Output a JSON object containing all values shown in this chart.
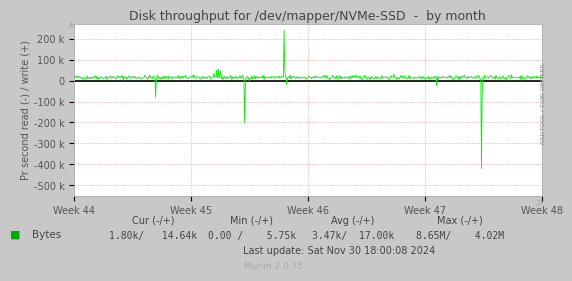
{
  "title": "Disk throughput for /dev/mapper/NVMe-SSD  -  by month",
  "ylabel": "Pr second read (-) / write (+)",
  "xlabel_ticks": [
    "Week 44",
    "Week 45",
    "Week 46",
    "Week 47",
    "Week 48"
  ],
  "ylim": [
    -550000,
    270000
  ],
  "yticks": [
    -500000,
    -400000,
    -300000,
    -200000,
    -100000,
    0,
    100000,
    200000
  ],
  "ytick_labels": [
    "-500 k",
    "-400 k",
    "-300 k",
    "-200 k",
    "-100 k",
    "0",
    "100 k",
    "200 k"
  ],
  "bg_color": "#c8c8c8",
  "plot_bg_color": "#ffffff",
  "grid_color": "#f08080",
  "line_color": "#00ee00",
  "zero_line_color": "#000000",
  "sidebar_text": "RRDTOOL / TOBI OETIKER",
  "legend_label": "Bytes",
  "legend_color": "#00aa00",
  "footer_update": "Last update: Sat Nov 30 18:00:08 2024",
  "munin_label": "Munin 2.0.75",
  "n_points": 700,
  "base_signal_mean": 15000,
  "base_signal_std": 5000
}
